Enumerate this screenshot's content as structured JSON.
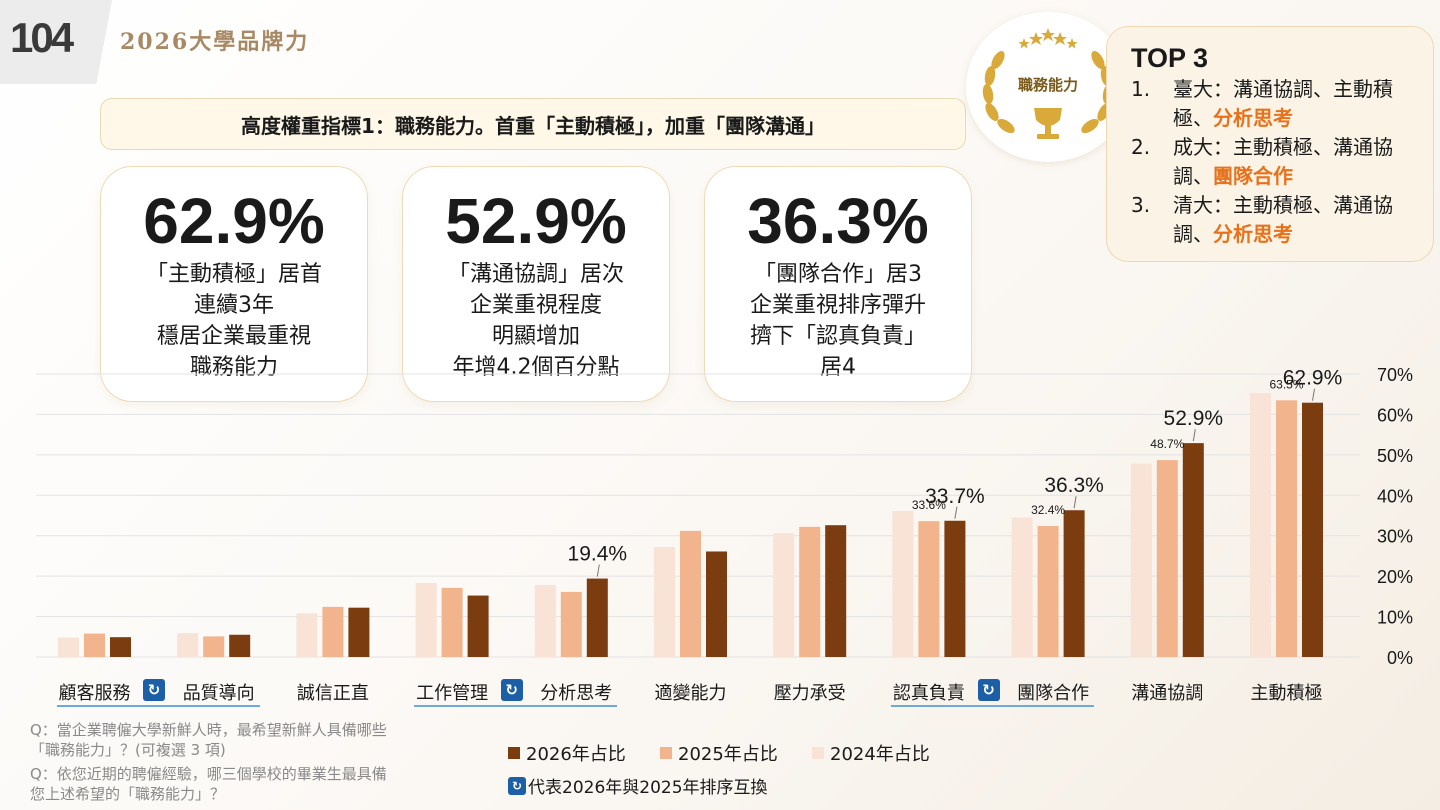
{
  "header": {
    "logo": "104",
    "title": "2026大學品牌力"
  },
  "headline": "高度權重指標1：職務能力。首重「主動積極」，加重「團隊溝通」",
  "stats": [
    {
      "value": "62.9%",
      "lines": [
        "「主動積極」居首",
        "連續3年",
        "穩居企業最重視",
        "職務能力"
      ]
    },
    {
      "value": "52.9%",
      "lines": [
        "「溝通協調」居次",
        "企業重視程度",
        "明顯增加",
        "年增4.2個百分點"
      ]
    },
    {
      "value": "36.3%",
      "lines": [
        "「團隊合作」居3",
        "企業重視排序彈升",
        "擠下「認真負責」",
        "居4"
      ]
    }
  ],
  "medal": {
    "label": "職務能力"
  },
  "top3": {
    "title": "TOP 3",
    "items": [
      {
        "num": "1.",
        "text": "臺大：溝通協調、主動積極、",
        "highlight": "分析思考"
      },
      {
        "num": "2.",
        "text": "成大：主動積極、溝通協調、",
        "highlight": "團隊合作"
      },
      {
        "num": "3.",
        "text": "清大：主動積極、溝通協調、",
        "highlight": "分析思考"
      }
    ]
  },
  "chart_data": {
    "type": "bar",
    "title": "",
    "xlabel": "",
    "ylabel": "",
    "ylim": [
      0,
      70
    ],
    "yticks": [
      "0%",
      "10%",
      "20%",
      "30%",
      "40%",
      "50%",
      "60%",
      "70%"
    ],
    "categories": [
      "顧客服務",
      "品質導向",
      "誠信正直",
      "工作管理",
      "分析思考",
      "適變能力",
      "壓力承受",
      "認真負責",
      "團隊合作",
      "溝通協調",
      "主動積極"
    ],
    "series": [
      {
        "name": "2024年占比",
        "color": "#f9e2d6",
        "values": [
          4.8,
          5.9,
          10.8,
          18.3,
          17.8,
          27.2,
          30.6,
          36.1,
          34.5,
          47.8,
          65.3
        ]
      },
      {
        "name": "2025年占比",
        "color": "#f2b48d",
        "values": [
          5.8,
          5.1,
          12.4,
          17.1,
          16.1,
          31.2,
          32.2,
          33.6,
          32.4,
          48.7,
          63.5
        ]
      },
      {
        "name": "2026年占比",
        "color": "#7b3c10",
        "values": [
          4.9,
          5.5,
          12.2,
          15.2,
          19.4,
          26.1,
          32.6,
          33.7,
          36.3,
          52.9,
          62.9
        ]
      }
    ],
    "data_labels": [
      {
        "category": 4,
        "series": "2026年占比",
        "text": "19.4%"
      },
      {
        "category": 7,
        "series": "2025年占比",
        "text": "33.6%"
      },
      {
        "category": 7,
        "series": "2026年占比",
        "text": "33.7%"
      },
      {
        "category": 8,
        "series": "2025年占比",
        "text": "32.4%"
      },
      {
        "category": 8,
        "series": "2026年占比",
        "text": "36.3%"
      },
      {
        "category": 9,
        "series": "2025年占比",
        "text": "48.7%"
      },
      {
        "category": 9,
        "series": "2026年占比",
        "text": "52.9%"
      },
      {
        "category": 10,
        "series": "2025年占比",
        "text": "63.5%"
      },
      {
        "category": 10,
        "series": "2026年占比",
        "text": "62.9%"
      }
    ],
    "swapped_pairs": [
      [
        0,
        1
      ],
      [
        3,
        4
      ],
      [
        7,
        8
      ]
    ],
    "legend": [
      "2026年占比",
      "2025年占比",
      "2024年占比"
    ]
  },
  "legend_note": "代表2026年與2025年排序互換",
  "questions": [
    "Q：當企業聘僱大學新鮮人時，最希望新鮮人具備哪些「職務能力」？(可複選 3 項)",
    "Q：依您近期的聘僱經驗，哪三個學校的畢業生最具備您上述希望的「職務能力」？"
  ],
  "colors": {
    "accent": "#e8711b",
    "bar2026": "#7b3c10",
    "bar2025": "#f2b48d",
    "bar2024": "#f9e2d6",
    "swap": "#1d5fa7"
  }
}
